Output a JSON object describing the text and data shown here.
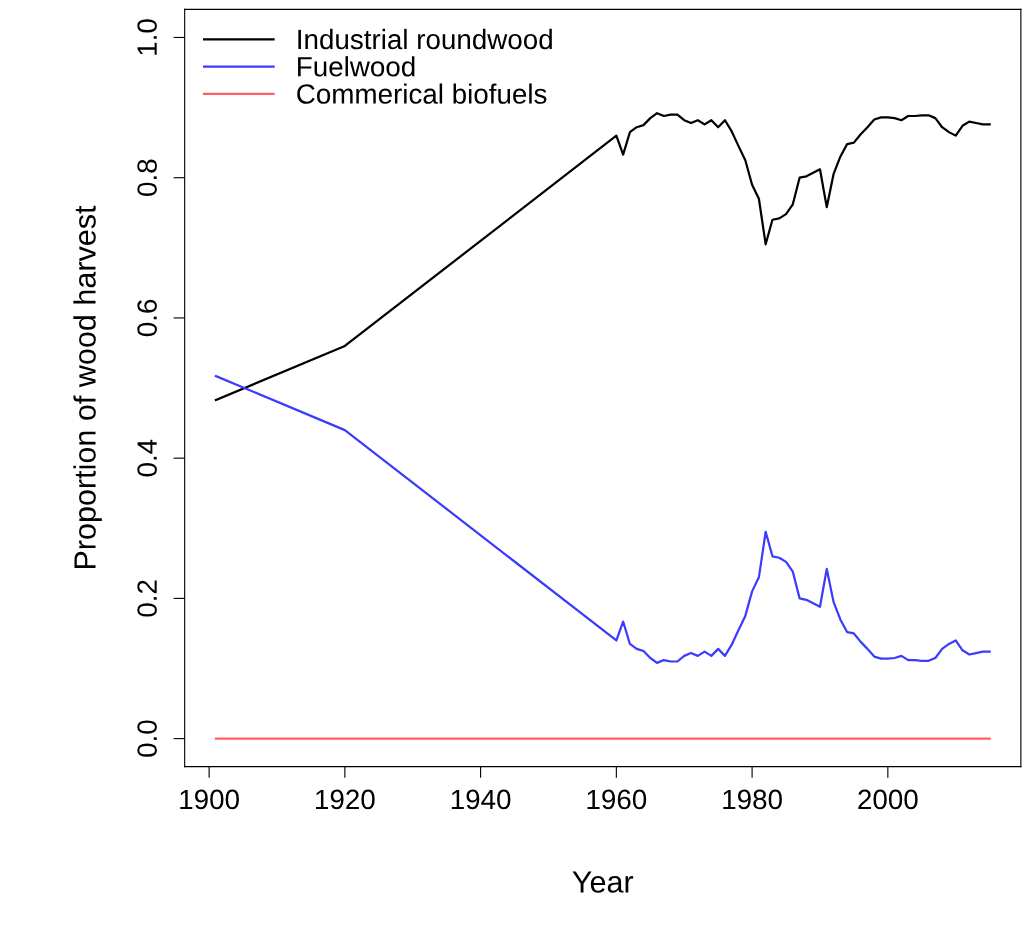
{
  "chart_data": {
    "type": "line",
    "xlabel": "Year",
    "ylabel": "Proportion of wood harvest",
    "x": [
      1901,
      1920,
      1960,
      1961,
      1962,
      1963,
      1964,
      1965,
      1966,
      1967,
      1968,
      1969,
      1970,
      1971,
      1972,
      1973,
      1974,
      1975,
      1976,
      1977,
      1978,
      1979,
      1980,
      1981,
      1982,
      1983,
      1984,
      1985,
      1986,
      1987,
      1988,
      1989,
      1990,
      1991,
      1992,
      1993,
      1994,
      1995,
      1996,
      1997,
      1998,
      1999,
      2000,
      2001,
      2002,
      2003,
      2004,
      2005,
      2006,
      2007,
      2008,
      2009,
      2010,
      2011,
      2012,
      2013,
      2014,
      2015
    ],
    "series": [
      {
        "name": "Industrial roundwood",
        "color": "#000000",
        "values": [
          0.483,
          0.56,
          0.86,
          0.833,
          0.865,
          0.872,
          0.875,
          0.885,
          0.892,
          0.888,
          0.89,
          0.89,
          0.882,
          0.878,
          0.882,
          0.876,
          0.882,
          0.872,
          0.882,
          0.866,
          0.845,
          0.825,
          0.79,
          0.77,
          0.705,
          0.74,
          0.742,
          0.748,
          0.762,
          0.8,
          0.802,
          0.807,
          0.812,
          0.758,
          0.805,
          0.83,
          0.848,
          0.85,
          0.862,
          0.872,
          0.883,
          0.886,
          0.886,
          0.885,
          0.882,
          0.888,
          0.888,
          0.889,
          0.889,
          0.885,
          0.872,
          0.865,
          0.86,
          0.874,
          0.88,
          0.878,
          0.876,
          0.876
        ]
      },
      {
        "name": "Fuelwood",
        "color": "#3b3bff",
        "values": [
          0.517,
          0.44,
          0.14,
          0.167,
          0.135,
          0.128,
          0.125,
          0.115,
          0.108,
          0.112,
          0.11,
          0.11,
          0.118,
          0.122,
          0.118,
          0.124,
          0.118,
          0.128,
          0.118,
          0.134,
          0.155,
          0.175,
          0.21,
          0.23,
          0.295,
          0.26,
          0.258,
          0.252,
          0.238,
          0.2,
          0.198,
          0.193,
          0.188,
          0.242,
          0.195,
          0.17,
          0.152,
          0.15,
          0.138,
          0.128,
          0.117,
          0.114,
          0.114,
          0.115,
          0.118,
          0.112,
          0.112,
          0.111,
          0.111,
          0.115,
          0.128,
          0.135,
          0.14,
          0.126,
          0.12,
          0.122,
          0.124,
          0.124
        ]
      },
      {
        "name": "Commerical biofuels",
        "color": "#ff5f5f",
        "values": [
          0,
          0,
          0,
          0,
          0,
          0,
          0,
          0,
          0,
          0,
          0,
          0,
          0,
          0,
          0,
          0,
          0,
          0,
          0,
          0,
          0,
          0,
          0,
          0,
          0,
          0,
          0,
          0,
          0,
          0,
          0,
          0,
          0,
          0,
          0,
          0,
          0,
          0,
          0,
          0,
          0,
          0,
          0,
          0,
          0,
          0,
          0,
          0,
          0,
          0,
          0,
          0,
          0,
          0,
          0,
          0,
          0,
          0
        ]
      }
    ],
    "xlim": [
      1896.4,
      2019.6
    ],
    "ylim": [
      -0.04,
      1.04
    ],
    "xticks": [
      1900,
      1920,
      1940,
      1960,
      1980,
      2000
    ],
    "yticks": [
      {
        "value": 0,
        "label": "0.0"
      },
      {
        "value": 0.2,
        "label": "0.2"
      },
      {
        "value": 0.4,
        "label": "0.4"
      },
      {
        "value": 0.6,
        "label": "0.6"
      },
      {
        "value": 0.8,
        "label": "0.8"
      },
      {
        "value": 1,
        "label": "1.0"
      }
    ],
    "grid": false,
    "legend": "top left"
  }
}
